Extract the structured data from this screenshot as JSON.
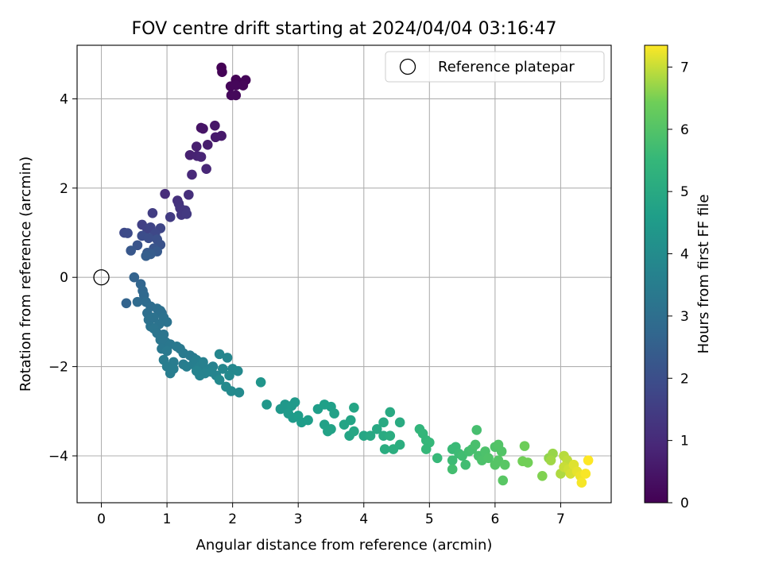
{
  "chart_data": {
    "type": "scatter",
    "title": "FOV centre drift starting at 2024/04/04 03:16:47",
    "xlabel": "Angular distance from reference (arcmin)",
    "ylabel": "Rotation from reference (arcmin)",
    "xlim": [
      -0.37,
      7.77
    ],
    "ylim": [
      -5.05,
      5.2
    ],
    "x_ticks": [
      0,
      1,
      2,
      3,
      4,
      5,
      6,
      7
    ],
    "y_ticks": [
      -4,
      -2,
      0,
      2,
      4
    ],
    "grid": true,
    "legend": {
      "position": "top-right",
      "entries": [
        "Reference platepar"
      ]
    },
    "reference_point": {
      "x": 0,
      "y": 0,
      "label": "Reference platepar"
    },
    "colorbar": {
      "label": "Hours from first FF file",
      "range": [
        0,
        7.35
      ],
      "ticks": [
        0,
        1,
        2,
        3,
        4,
        5,
        6,
        7
      ],
      "colormap": "viridis"
    },
    "points_columns": [
      "x",
      "y",
      "hours"
    ],
    "points": [
      [
        1.83,
        4.7,
        0.02
      ],
      [
        1.84,
        4.6,
        0.04
      ],
      [
        2.05,
        4.43,
        0.06
      ],
      [
        2.1,
        4.36,
        0.08
      ],
      [
        2.2,
        4.42,
        0.1
      ],
      [
        1.97,
        4.28,
        0.12
      ],
      [
        2.16,
        4.3,
        0.14
      ],
      [
        2.05,
        4.3,
        0.15
      ],
      [
        1.98,
        4.08,
        0.17
      ],
      [
        2.05,
        4.08,
        0.19
      ],
      [
        1.52,
        3.35,
        0.4
      ],
      [
        1.55,
        3.33,
        0.45
      ],
      [
        1.73,
        3.4,
        0.5
      ],
      [
        1.83,
        3.17,
        0.55
      ],
      [
        1.74,
        3.14,
        0.6
      ],
      [
        1.62,
        2.97,
        0.65
      ],
      [
        1.45,
        2.93,
        0.7
      ],
      [
        1.35,
        2.74,
        0.75
      ],
      [
        1.46,
        2.72,
        0.8
      ],
      [
        1.52,
        2.7,
        0.85
      ],
      [
        1.6,
        2.43,
        0.9
      ],
      [
        1.38,
        2.3,
        0.95
      ],
      [
        0.97,
        1.87,
        1.05
      ],
      [
        1.33,
        1.85,
        1.1
      ],
      [
        1.16,
        1.72,
        1.15
      ],
      [
        1.18,
        1.65,
        1.2
      ],
      [
        1.2,
        1.55,
        1.25
      ],
      [
        1.28,
        1.5,
        1.3
      ],
      [
        1.22,
        1.4,
        1.35
      ],
      [
        1.3,
        1.42,
        1.4
      ],
      [
        1.05,
        1.35,
        1.45
      ],
      [
        0.78,
        1.44,
        1.5
      ],
      [
        0.62,
        1.18,
        1.6
      ],
      [
        0.7,
        1.08,
        1.65
      ],
      [
        0.75,
        1.12,
        1.7
      ],
      [
        0.9,
        1.1,
        1.75
      ],
      [
        0.82,
        0.98,
        1.8
      ],
      [
        0.35,
        1.0,
        1.85
      ],
      [
        0.4,
        0.99,
        1.9
      ],
      [
        0.62,
        0.93,
        1.95
      ],
      [
        0.72,
        0.88,
        2.0
      ],
      [
        0.85,
        0.85,
        2.05
      ],
      [
        0.9,
        0.73,
        2.1
      ],
      [
        0.55,
        0.72,
        2.15
      ],
      [
        0.8,
        0.65,
        2.2
      ],
      [
        0.45,
        0.6,
        2.25
      ],
      [
        0.85,
        0.58,
        2.3
      ],
      [
        0.7,
        0.55,
        2.35
      ],
      [
        0.75,
        0.52,
        2.4
      ],
      [
        0.68,
        0.48,
        2.45
      ],
      [
        0.5,
        0.0,
        2.6
      ],
      [
        0.38,
        -0.58,
        2.65
      ],
      [
        0.6,
        -0.15,
        2.7
      ],
      [
        0.63,
        -0.3,
        2.75
      ],
      [
        0.65,
        -0.4,
        2.8
      ],
      [
        0.55,
        -0.55,
        2.85
      ],
      [
        0.68,
        -0.55,
        2.9
      ],
      [
        0.75,
        -0.65,
        2.95
      ],
      [
        0.7,
        -0.8,
        3.0
      ],
      [
        0.85,
        -0.7,
        3.0
      ],
      [
        0.9,
        -0.75,
        3.05
      ],
      [
        0.92,
        -0.8,
        3.05
      ],
      [
        0.8,
        -0.9,
        3.1
      ],
      [
        0.95,
        -0.9,
        3.1
      ],
      [
        0.72,
        -0.95,
        3.1
      ],
      [
        1.0,
        -1.0,
        3.15
      ],
      [
        0.88,
        -1.05,
        3.15
      ],
      [
        0.75,
        -1.1,
        3.15
      ],
      [
        0.8,
        -1.15,
        3.2
      ],
      [
        0.85,
        -1.25,
        3.2
      ],
      [
        0.95,
        -1.28,
        3.2
      ],
      [
        0.9,
        -1.4,
        3.25
      ],
      [
        0.98,
        -1.45,
        3.25
      ],
      [
        0.92,
        -1.6,
        3.3
      ],
      [
        1.05,
        -1.5,
        3.3
      ],
      [
        1.15,
        -1.55,
        3.35
      ],
      [
        1.0,
        -1.65,
        3.35
      ],
      [
        1.2,
        -1.6,
        3.35
      ],
      [
        1.25,
        -1.7,
        3.4
      ],
      [
        1.35,
        -1.75,
        3.4
      ],
      [
        1.4,
        -1.8,
        3.4
      ],
      [
        0.95,
        -1.85,
        3.45
      ],
      [
        1.1,
        -1.9,
        3.45
      ],
      [
        1.25,
        -1.95,
        3.45
      ],
      [
        1.0,
        -2.0,
        3.5
      ],
      [
        1.1,
        -2.05,
        3.5
      ],
      [
        1.05,
        -2.15,
        3.5
      ],
      [
        1.3,
        -2.0,
        3.55
      ],
      [
        1.4,
        -1.95,
        3.55
      ],
      [
        1.45,
        -1.85,
        3.55
      ],
      [
        1.5,
        -2.0,
        3.6
      ],
      [
        1.55,
        -1.9,
        3.6
      ],
      [
        1.6,
        -2.1,
        3.65
      ],
      [
        1.65,
        -2.05,
        3.65
      ],
      [
        1.7,
        -2.0,
        3.65
      ],
      [
        1.45,
        -2.1,
        3.7
      ],
      [
        1.58,
        -2.15,
        3.7
      ],
      [
        1.5,
        -2.2,
        3.7
      ],
      [
        1.75,
        -2.2,
        3.75
      ],
      [
        1.68,
        -2.12,
        3.75
      ],
      [
        1.8,
        -1.72,
        3.8
      ],
      [
        1.92,
        -1.8,
        3.8
      ],
      [
        1.85,
        -2.05,
        3.85
      ],
      [
        2.0,
        -2.05,
        3.85
      ],
      [
        2.08,
        -2.1,
        3.9
      ],
      [
        1.95,
        -2.2,
        3.9
      ],
      [
        1.8,
        -2.3,
        3.9
      ],
      [
        1.9,
        -2.45,
        3.95
      ],
      [
        1.98,
        -2.55,
        3.95
      ],
      [
        2.1,
        -2.58,
        3.95
      ],
      [
        2.43,
        -2.35,
        4.3
      ],
      [
        2.52,
        -2.85,
        4.35
      ],
      [
        2.73,
        -2.95,
        4.4
      ],
      [
        2.8,
        -2.85,
        4.4
      ],
      [
        2.9,
        -2.88,
        4.45
      ],
      [
        2.95,
        -2.8,
        4.45
      ],
      [
        2.85,
        -3.05,
        4.5
      ],
      [
        2.92,
        -3.15,
        4.5
      ],
      [
        3.0,
        -3.1,
        4.55
      ],
      [
        3.05,
        -3.25,
        4.55
      ],
      [
        3.15,
        -3.2,
        4.6
      ],
      [
        3.3,
        -2.95,
        4.6
      ],
      [
        3.4,
        -2.85,
        4.65
      ],
      [
        3.5,
        -2.9,
        4.65
      ],
      [
        3.55,
        -3.05,
        4.7
      ],
      [
        3.4,
        -3.3,
        4.7
      ],
      [
        3.45,
        -3.45,
        4.75
      ],
      [
        3.5,
        -3.4,
        4.75
      ],
      [
        3.7,
        -3.3,
        4.8
      ],
      [
        3.8,
        -3.2,
        4.8
      ],
      [
        3.85,
        -2.92,
        4.85
      ],
      [
        3.78,
        -3.55,
        4.85
      ],
      [
        3.85,
        -3.45,
        4.9
      ],
      [
        4.0,
        -3.55,
        4.9
      ],
      [
        4.1,
        -3.55,
        4.95
      ],
      [
        4.2,
        -3.4,
        4.95
      ],
      [
        4.3,
        -3.25,
        5.0
      ],
      [
        4.4,
        -3.02,
        5.0
      ],
      [
        4.55,
        -3.25,
        5.05
      ],
      [
        4.3,
        -3.55,
        5.05
      ],
      [
        4.4,
        -3.55,
        5.1
      ],
      [
        4.32,
        -3.85,
        5.1
      ],
      [
        4.45,
        -3.85,
        5.15
      ],
      [
        4.55,
        -3.75,
        5.15
      ],
      [
        4.85,
        -3.4,
        5.4
      ],
      [
        4.9,
        -3.5,
        5.45
      ],
      [
        4.95,
        -3.65,
        5.45
      ],
      [
        5.0,
        -3.7,
        5.5
      ],
      [
        4.95,
        -3.85,
        5.5
      ],
      [
        5.12,
        -4.05,
        5.55
      ],
      [
        5.35,
        -3.85,
        5.6
      ],
      [
        5.4,
        -3.8,
        5.6
      ],
      [
        5.45,
        -3.95,
        5.65
      ],
      [
        5.35,
        -4.1,
        5.65
      ],
      [
        5.5,
        -4.0,
        5.7
      ],
      [
        5.55,
        -4.2,
        5.7
      ],
      [
        5.35,
        -4.3,
        5.75
      ],
      [
        5.6,
        -3.9,
        5.75
      ],
      [
        5.65,
        -3.85,
        5.8
      ],
      [
        5.72,
        -3.42,
        5.8
      ],
      [
        5.7,
        -3.75,
        5.85
      ],
      [
        5.75,
        -4.0,
        5.85
      ],
      [
        5.8,
        -4.1,
        5.9
      ],
      [
        5.85,
        -3.9,
        5.9
      ],
      [
        5.9,
        -4.05,
        5.95
      ],
      [
        6.0,
        -3.8,
        5.95
      ],
      [
        6.05,
        -3.75,
        6.0
      ],
      [
        6.1,
        -3.9,
        6.0
      ],
      [
        6.05,
        -4.1,
        6.05
      ],
      [
        6.0,
        -4.2,
        6.05
      ],
      [
        6.12,
        -4.55,
        6.1
      ],
      [
        6.15,
        -4.2,
        6.1
      ],
      [
        6.45,
        -3.78,
        6.4
      ],
      [
        6.42,
        -4.12,
        6.45
      ],
      [
        6.5,
        -4.15,
        6.45
      ],
      [
        6.72,
        -4.45,
        6.55
      ],
      [
        6.82,
        -4.05,
        6.65
      ],
      [
        6.88,
        -3.95,
        6.7
      ],
      [
        6.85,
        -4.1,
        6.75
      ],
      [
        7.0,
        -4.4,
        6.85
      ],
      [
        7.05,
        -4.0,
        6.9
      ],
      [
        7.1,
        -4.1,
        6.95
      ],
      [
        7.05,
        -4.25,
        7.0
      ],
      [
        7.12,
        -4.3,
        7.05
      ],
      [
        7.15,
        -4.4,
        7.1
      ],
      [
        7.2,
        -4.2,
        7.15
      ],
      [
        7.25,
        -4.35,
        7.2
      ],
      [
        7.3,
        -4.45,
        7.25
      ],
      [
        7.32,
        -4.6,
        7.3
      ],
      [
        7.38,
        -4.4,
        7.32
      ],
      [
        7.42,
        -4.1,
        7.35
      ]
    ]
  }
}
